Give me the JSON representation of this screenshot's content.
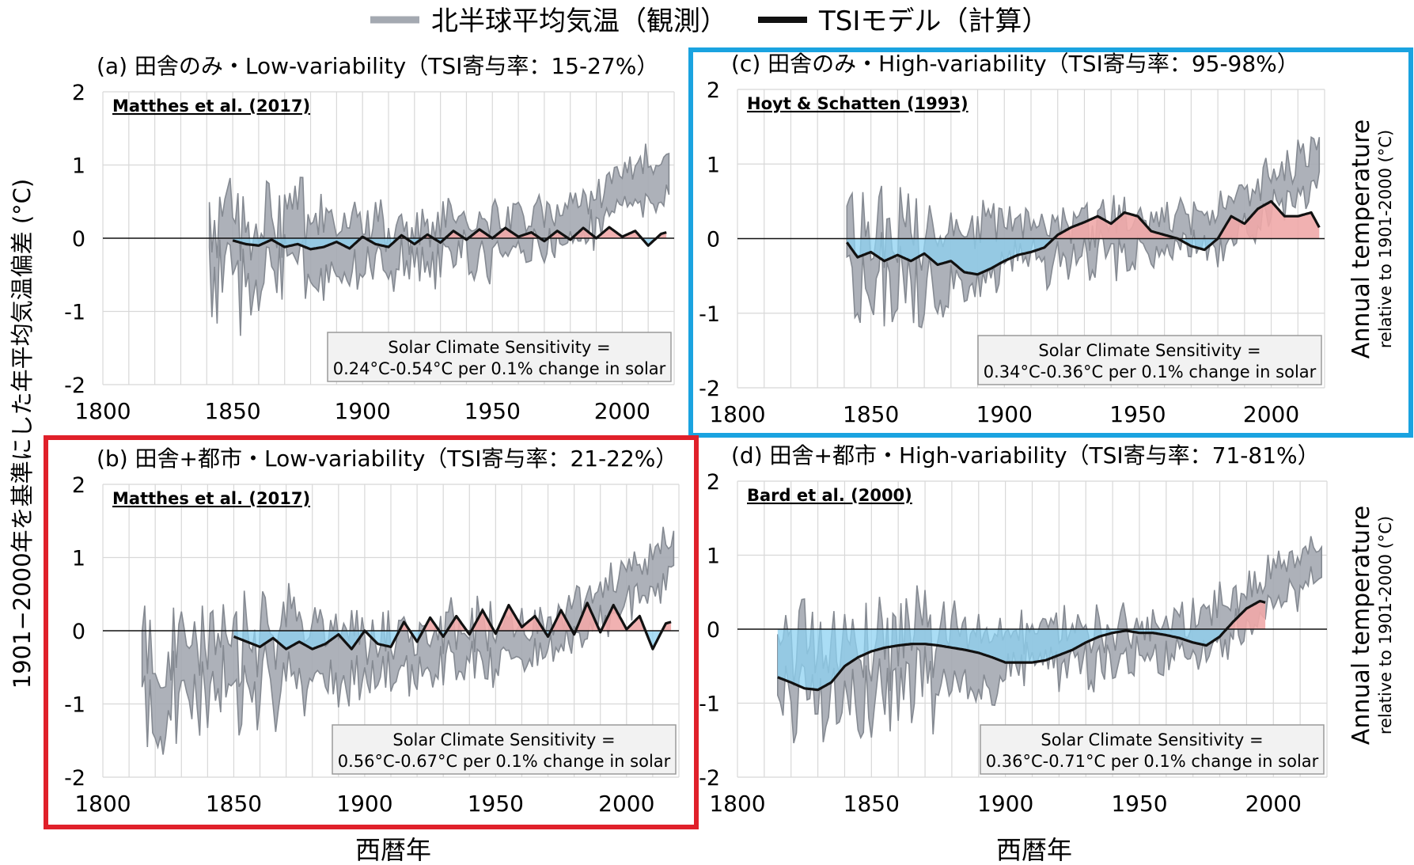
{
  "legend": {
    "items": [
      {
        "label": "北半球平均気温（観測）",
        "color": "#a4a9b1"
      },
      {
        "label": "TSIモデル（計算）",
        "color": "#111111"
      }
    ]
  },
  "figure": {
    "y_axis_label": "1901−2000年を基準にした年平均気温偏差 (°C)",
    "x_axis_label": "西暦年",
    "right_label_main": "Annual temperature",
    "right_label_sub": "relative to 1901-2000 (°C)",
    "colors": {
      "observed_fill": "#a4a9b1",
      "observed_edge": "#858a92",
      "model_line": "#111111",
      "positive_fill": "#f0a8a8",
      "negative_fill": "#8ed2f2",
      "highlight_blue": "#1aa3e0",
      "highlight_red": "#e0202a",
      "grid": "#d8d8d8"
    }
  },
  "chart_data": [
    {
      "id": "a",
      "type": "area",
      "title": "(a) 田舎のみ・Low-variability（TSI寄与率：15-27%）",
      "source": "Matthes et al. (2017)",
      "sensitivity_line1": "Solar Climate Sensitivity =",
      "sensitivity_line2": "0.24°C-0.54°C per 0.1% change in solar",
      "xlim": [
        1800,
        2020
      ],
      "ylim": [
        -2,
        2
      ],
      "xticks": [
        "1800",
        "1850",
        "1900",
        "1950",
        "2000"
      ],
      "yticks": [
        "2",
        "1",
        "0",
        "-1",
        "-2"
      ],
      "grid": true,
      "observed_range": {
        "start": 1841,
        "end": 2018,
        "lead_in_min": -1.2,
        "lead_in_max": 0.35
      },
      "model": {
        "start": 1850,
        "end": 2017,
        "points": [
          [
            1850,
            -0.03
          ],
          [
            1855,
            -0.08
          ],
          [
            1860,
            -0.1
          ],
          [
            1865,
            -0.02
          ],
          [
            1870,
            -0.12
          ],
          [
            1875,
            -0.08
          ],
          [
            1880,
            -0.15
          ],
          [
            1885,
            -0.12
          ],
          [
            1890,
            -0.05
          ],
          [
            1895,
            -0.14
          ],
          [
            1900,
            0.02
          ],
          [
            1905,
            -0.08
          ],
          [
            1910,
            -0.12
          ],
          [
            1915,
            0.04
          ],
          [
            1920,
            -0.08
          ],
          [
            1925,
            0.05
          ],
          [
            1930,
            -0.06
          ],
          [
            1935,
            0.1
          ],
          [
            1940,
            -0.02
          ],
          [
            1945,
            0.12
          ],
          [
            1950,
            0.0
          ],
          [
            1955,
            0.14
          ],
          [
            1960,
            0.02
          ],
          [
            1965,
            0.08
          ],
          [
            1970,
            -0.04
          ],
          [
            1975,
            0.1
          ],
          [
            1980,
            -0.02
          ],
          [
            1985,
            0.14
          ],
          [
            1990,
            0.0
          ],
          [
            1995,
            0.15
          ],
          [
            2000,
            0.02
          ],
          [
            2005,
            0.1
          ],
          [
            2010,
            -0.1
          ],
          [
            2015,
            0.06
          ],
          [
            2017,
            0.08
          ]
        ]
      }
    },
    {
      "id": "c",
      "type": "area",
      "title": "(c) 田舎のみ・High-variability（TSI寄与率：95-98%）",
      "source": "Hoyt & Schatten (1993)",
      "sensitivity_line1": "Solar Climate Sensitivity =",
      "sensitivity_line2": "0.34°C-0.36°C per 0.1% change in solar",
      "xlim": [
        1800,
        2020
      ],
      "ylim": [
        -2,
        2
      ],
      "xticks": [
        "1800",
        "1850",
        "1900",
        "1950",
        "2000"
      ],
      "yticks": [
        "2",
        "1",
        "0",
        "-1",
        "-2"
      ],
      "grid": true,
      "observed_range": {
        "start": 1841,
        "end": 2018,
        "lead_in_min": -1.2,
        "lead_in_max": 0.35
      },
      "model": {
        "start": 1841,
        "end": 2018,
        "points": [
          [
            1841,
            -0.05
          ],
          [
            1845,
            -0.25
          ],
          [
            1850,
            -0.18
          ],
          [
            1855,
            -0.3
          ],
          [
            1860,
            -0.22
          ],
          [
            1865,
            -0.3
          ],
          [
            1870,
            -0.2
          ],
          [
            1875,
            -0.35
          ],
          [
            1880,
            -0.3
          ],
          [
            1885,
            -0.45
          ],
          [
            1890,
            -0.48
          ],
          [
            1895,
            -0.4
          ],
          [
            1900,
            -0.3
          ],
          [
            1905,
            -0.22
          ],
          [
            1910,
            -0.18
          ],
          [
            1915,
            -0.12
          ],
          [
            1920,
            0.05
          ],
          [
            1925,
            0.15
          ],
          [
            1930,
            0.22
          ],
          [
            1935,
            0.3
          ],
          [
            1940,
            0.2
          ],
          [
            1945,
            0.35
          ],
          [
            1950,
            0.3
          ],
          [
            1955,
            0.1
          ],
          [
            1960,
            0.05
          ],
          [
            1965,
            0.0
          ],
          [
            1970,
            -0.1
          ],
          [
            1975,
            -0.15
          ],
          [
            1980,
            0.0
          ],
          [
            1985,
            0.3
          ],
          [
            1990,
            0.2
          ],
          [
            1995,
            0.4
          ],
          [
            2000,
            0.5
          ],
          [
            2005,
            0.3
          ],
          [
            2010,
            0.3
          ],
          [
            2015,
            0.35
          ],
          [
            2018,
            0.15
          ]
        ]
      }
    },
    {
      "id": "b",
      "type": "area",
      "title": "(b) 田舎+都市・Low-variability（TSI寄与率：21-22%）",
      "source": "Matthes et al. (2017)",
      "sensitivity_line1": "Solar Climate Sensitivity =",
      "sensitivity_line2": "0.56°C-0.67°C per 0.1% change in solar",
      "xlim": [
        1800,
        2020
      ],
      "ylim": [
        -2,
        2
      ],
      "xticks": [
        "1800",
        "1850",
        "1900",
        "1950",
        "2000"
      ],
      "yticks": [
        "2",
        "1",
        "0",
        "-1",
        "-2"
      ],
      "grid": true,
      "observed_range": {
        "start": 1815,
        "end": 2018,
        "lead_in_min": -0.7,
        "lead_in_max": -1.9
      },
      "model": {
        "start": 1850,
        "end": 2017,
        "points": [
          [
            1850,
            -0.08
          ],
          [
            1855,
            -0.15
          ],
          [
            1860,
            -0.22
          ],
          [
            1865,
            -0.1
          ],
          [
            1870,
            -0.25
          ],
          [
            1875,
            -0.15
          ],
          [
            1880,
            -0.25
          ],
          [
            1885,
            -0.18
          ],
          [
            1890,
            -0.05
          ],
          [
            1895,
            -0.25
          ],
          [
            1900,
            0.0
          ],
          [
            1905,
            -0.18
          ],
          [
            1910,
            -0.22
          ],
          [
            1915,
            0.12
          ],
          [
            1920,
            -0.15
          ],
          [
            1925,
            0.18
          ],
          [
            1930,
            -0.08
          ],
          [
            1935,
            0.2
          ],
          [
            1940,
            -0.05
          ],
          [
            1945,
            0.28
          ],
          [
            1950,
            -0.04
          ],
          [
            1955,
            0.35
          ],
          [
            1960,
            0.05
          ],
          [
            1965,
            0.2
          ],
          [
            1970,
            -0.08
          ],
          [
            1975,
            0.28
          ],
          [
            1980,
            -0.05
          ],
          [
            1985,
            0.38
          ],
          [
            1990,
            -0.02
          ],
          [
            1995,
            0.35
          ],
          [
            2000,
            0.02
          ],
          [
            2005,
            0.2
          ],
          [
            2010,
            -0.25
          ],
          [
            2015,
            0.1
          ],
          [
            2017,
            0.12
          ]
        ]
      }
    },
    {
      "id": "d",
      "type": "area",
      "title": "(d) 田舎+都市・High-variability（TSI寄与率：71-81%）",
      "source": "Bard et al. (2000)",
      "sensitivity_line1": "Solar Climate Sensitivity =",
      "sensitivity_line2": "0.36°C-0.71°C per 0.1% change in solar",
      "xlim": [
        1800,
        2020
      ],
      "ylim": [
        -2,
        2
      ],
      "xticks": [
        "1800",
        "1850",
        "1900",
        "1950",
        "2000"
      ],
      "yticks": [
        "2",
        "1",
        "0",
        "-1",
        "-2"
      ],
      "grid": true,
      "observed_range": {
        "start": 1815,
        "end": 2018,
        "lead_in_min": -0.7,
        "lead_in_max": -1.9
      },
      "model": {
        "start": 1815,
        "end": 1997,
        "points": [
          [
            1815,
            -0.65
          ],
          [
            1820,
            -0.72
          ],
          [
            1825,
            -0.8
          ],
          [
            1830,
            -0.82
          ],
          [
            1835,
            -0.72
          ],
          [
            1840,
            -0.5
          ],
          [
            1845,
            -0.38
          ],
          [
            1850,
            -0.3
          ],
          [
            1855,
            -0.25
          ],
          [
            1860,
            -0.22
          ],
          [
            1865,
            -0.2
          ],
          [
            1870,
            -0.2
          ],
          [
            1875,
            -0.22
          ],
          [
            1880,
            -0.25
          ],
          [
            1885,
            -0.28
          ],
          [
            1890,
            -0.32
          ],
          [
            1895,
            -0.38
          ],
          [
            1900,
            -0.45
          ],
          [
            1905,
            -0.45
          ],
          [
            1910,
            -0.45
          ],
          [
            1915,
            -0.42
          ],
          [
            1920,
            -0.35
          ],
          [
            1925,
            -0.28
          ],
          [
            1930,
            -0.18
          ],
          [
            1935,
            -0.1
          ],
          [
            1940,
            -0.05
          ],
          [
            1945,
            -0.02
          ],
          [
            1950,
            -0.05
          ],
          [
            1955,
            -0.05
          ],
          [
            1960,
            -0.08
          ],
          [
            1965,
            -0.12
          ],
          [
            1970,
            -0.18
          ],
          [
            1975,
            -0.22
          ],
          [
            1980,
            -0.1
          ],
          [
            1985,
            0.1
          ],
          [
            1990,
            0.28
          ],
          [
            1995,
            0.38
          ],
          [
            1997,
            0.36
          ]
        ]
      }
    }
  ]
}
